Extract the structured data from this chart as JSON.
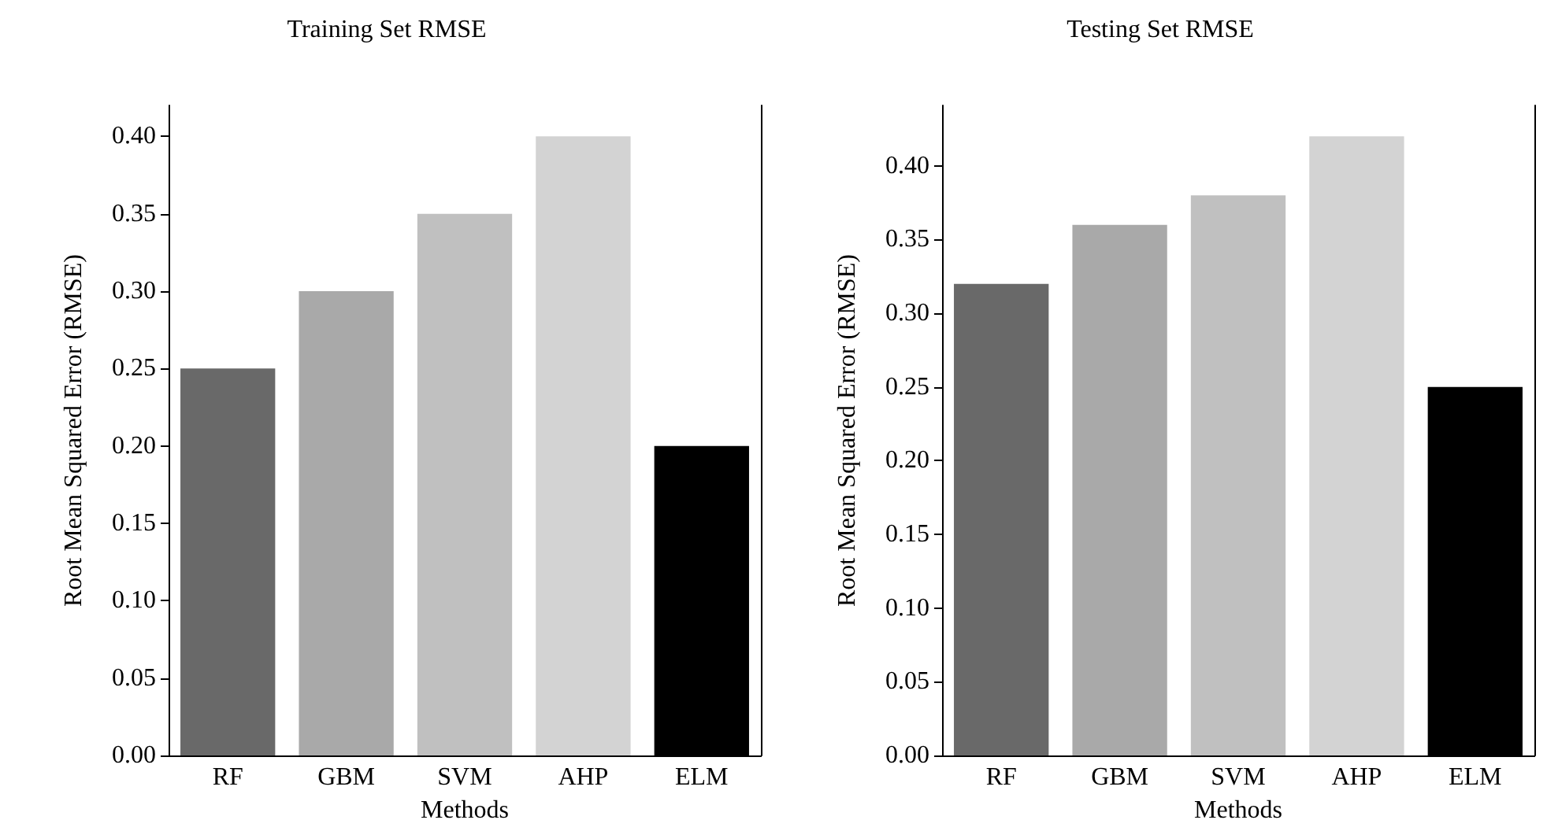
{
  "chart_data": [
    {
      "type": "bar",
      "title": "Training Set RMSE",
      "xlabel": "Methods",
      "ylabel": "Root Mean Squared Error (RMSE)",
      "categories": [
        "RF",
        "GBM",
        "SVM",
        "AHP",
        "ELM"
      ],
      "values": [
        0.25,
        0.3,
        0.35,
        0.4,
        0.2
      ],
      "colors": [
        "#696969",
        "#a9a9a9",
        "#c0c0c0",
        "#d3d3d3",
        "#000000"
      ],
      "ylim": [
        0,
        0.42
      ],
      "yticks": [
        {
          "value": 0,
          "label": "0.00"
        },
        {
          "value": 0.05,
          "label": "0.05"
        },
        {
          "value": 0.1,
          "label": "0.10"
        },
        {
          "value": 0.15,
          "label": "0.15"
        },
        {
          "value": 0.2,
          "label": "0.20"
        },
        {
          "value": 0.25,
          "label": "0.25"
        },
        {
          "value": 0.3,
          "label": "0.30"
        },
        {
          "value": 0.35,
          "label": "0.35"
        },
        {
          "value": 0.4,
          "label": "0.40"
        }
      ],
      "grid": false
    },
    {
      "type": "bar",
      "title": "Testing Set RMSE",
      "xlabel": "Methods",
      "ylabel": "Root Mean Squared Error (RMSE)",
      "categories": [
        "RF",
        "GBM",
        "SVM",
        "AHP",
        "ELM"
      ],
      "values": [
        0.32,
        0.36,
        0.38,
        0.42,
        0.25
      ],
      "colors": [
        "#696969",
        "#a9a9a9",
        "#c0c0c0",
        "#d3d3d3",
        "#000000"
      ],
      "ylim": [
        0,
        0.441
      ],
      "yticks": [
        {
          "value": 0,
          "label": "0.00"
        },
        {
          "value": 0.05,
          "label": "0.05"
        },
        {
          "value": 0.1,
          "label": "0.10"
        },
        {
          "value": 0.15,
          "label": "0.15"
        },
        {
          "value": 0.2,
          "label": "0.20"
        },
        {
          "value": 0.25,
          "label": "0.25"
        },
        {
          "value": 0.3,
          "label": "0.30"
        },
        {
          "value": 0.35,
          "label": "0.35"
        },
        {
          "value": 0.4,
          "label": "0.40"
        }
      ],
      "grid": false
    }
  ]
}
